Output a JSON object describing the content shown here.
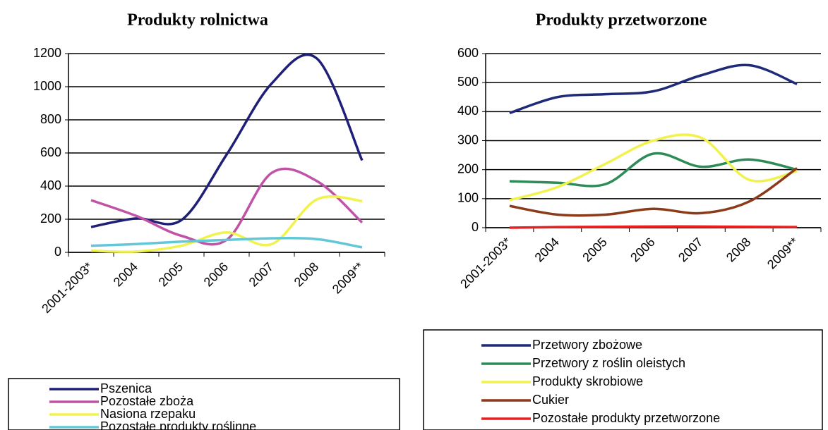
{
  "chart_data": [
    {
      "type": "line",
      "title": "Produkty rolnictwa",
      "categories": [
        "2001-2003*",
        "2004",
        "2005",
        "2006",
        "2007",
        "2008",
        "2009**"
      ],
      "ylim": [
        0,
        1200
      ],
      "yticks": [
        0,
        200,
        400,
        600,
        800,
        1000,
        1200
      ],
      "grid": true,
      "smooth": true,
      "series": [
        {
          "name": "Pszenica",
          "color": "#1f1f78",
          "values": [
            153,
            205,
            195,
            590,
            1020,
            1170,
            555
          ]
        },
        {
          "name": "Pozostałe zboża",
          "color": "#c052a8",
          "values": [
            315,
            220,
            100,
            75,
            480,
            430,
            180
          ]
        },
        {
          "name": "Nasiona rzepaku",
          "color": "#f2f24e",
          "values": [
            10,
            5,
            40,
            120,
            50,
            320,
            310
          ]
        },
        {
          "name": "Pozostałe produkty roślinne",
          "color": "#62c8d8",
          "values": [
            40,
            50,
            65,
            75,
            85,
            80,
            30
          ]
        }
      ]
    },
    {
      "type": "line",
      "title": "Produkty przetworzone",
      "categories": [
        "2001-2003*",
        "2004",
        "2005",
        "2006",
        "2007",
        "2008",
        "2009**"
      ],
      "ylim": [
        0,
        600
      ],
      "yticks": [
        0,
        100,
        200,
        300,
        400,
        500,
        600
      ],
      "grid": true,
      "smooth": true,
      "series": [
        {
          "name": "Przetwory zbożowe",
          "color": "#1f2a78",
          "values": [
            395,
            450,
            460,
            470,
            525,
            560,
            495
          ]
        },
        {
          "name": "Przetwory z roślin oleistych",
          "color": "#2e8b57",
          "values": [
            160,
            155,
            150,
            255,
            210,
            235,
            200
          ]
        },
        {
          "name": "Produkty skrobiowe",
          "color": "#f2f24e",
          "values": [
            95,
            140,
            220,
            300,
            310,
            165,
            195
          ]
        },
        {
          "name": "Cukier",
          "color": "#8b3a1a",
          "values": [
            75,
            45,
            45,
            65,
            50,
            90,
            205
          ]
        },
        {
          "name": "Pozostałe produkty przetworzone",
          "color": "#e82020",
          "values": [
            0,
            2,
            3,
            4,
            4,
            3,
            2
          ]
        }
      ]
    }
  ]
}
